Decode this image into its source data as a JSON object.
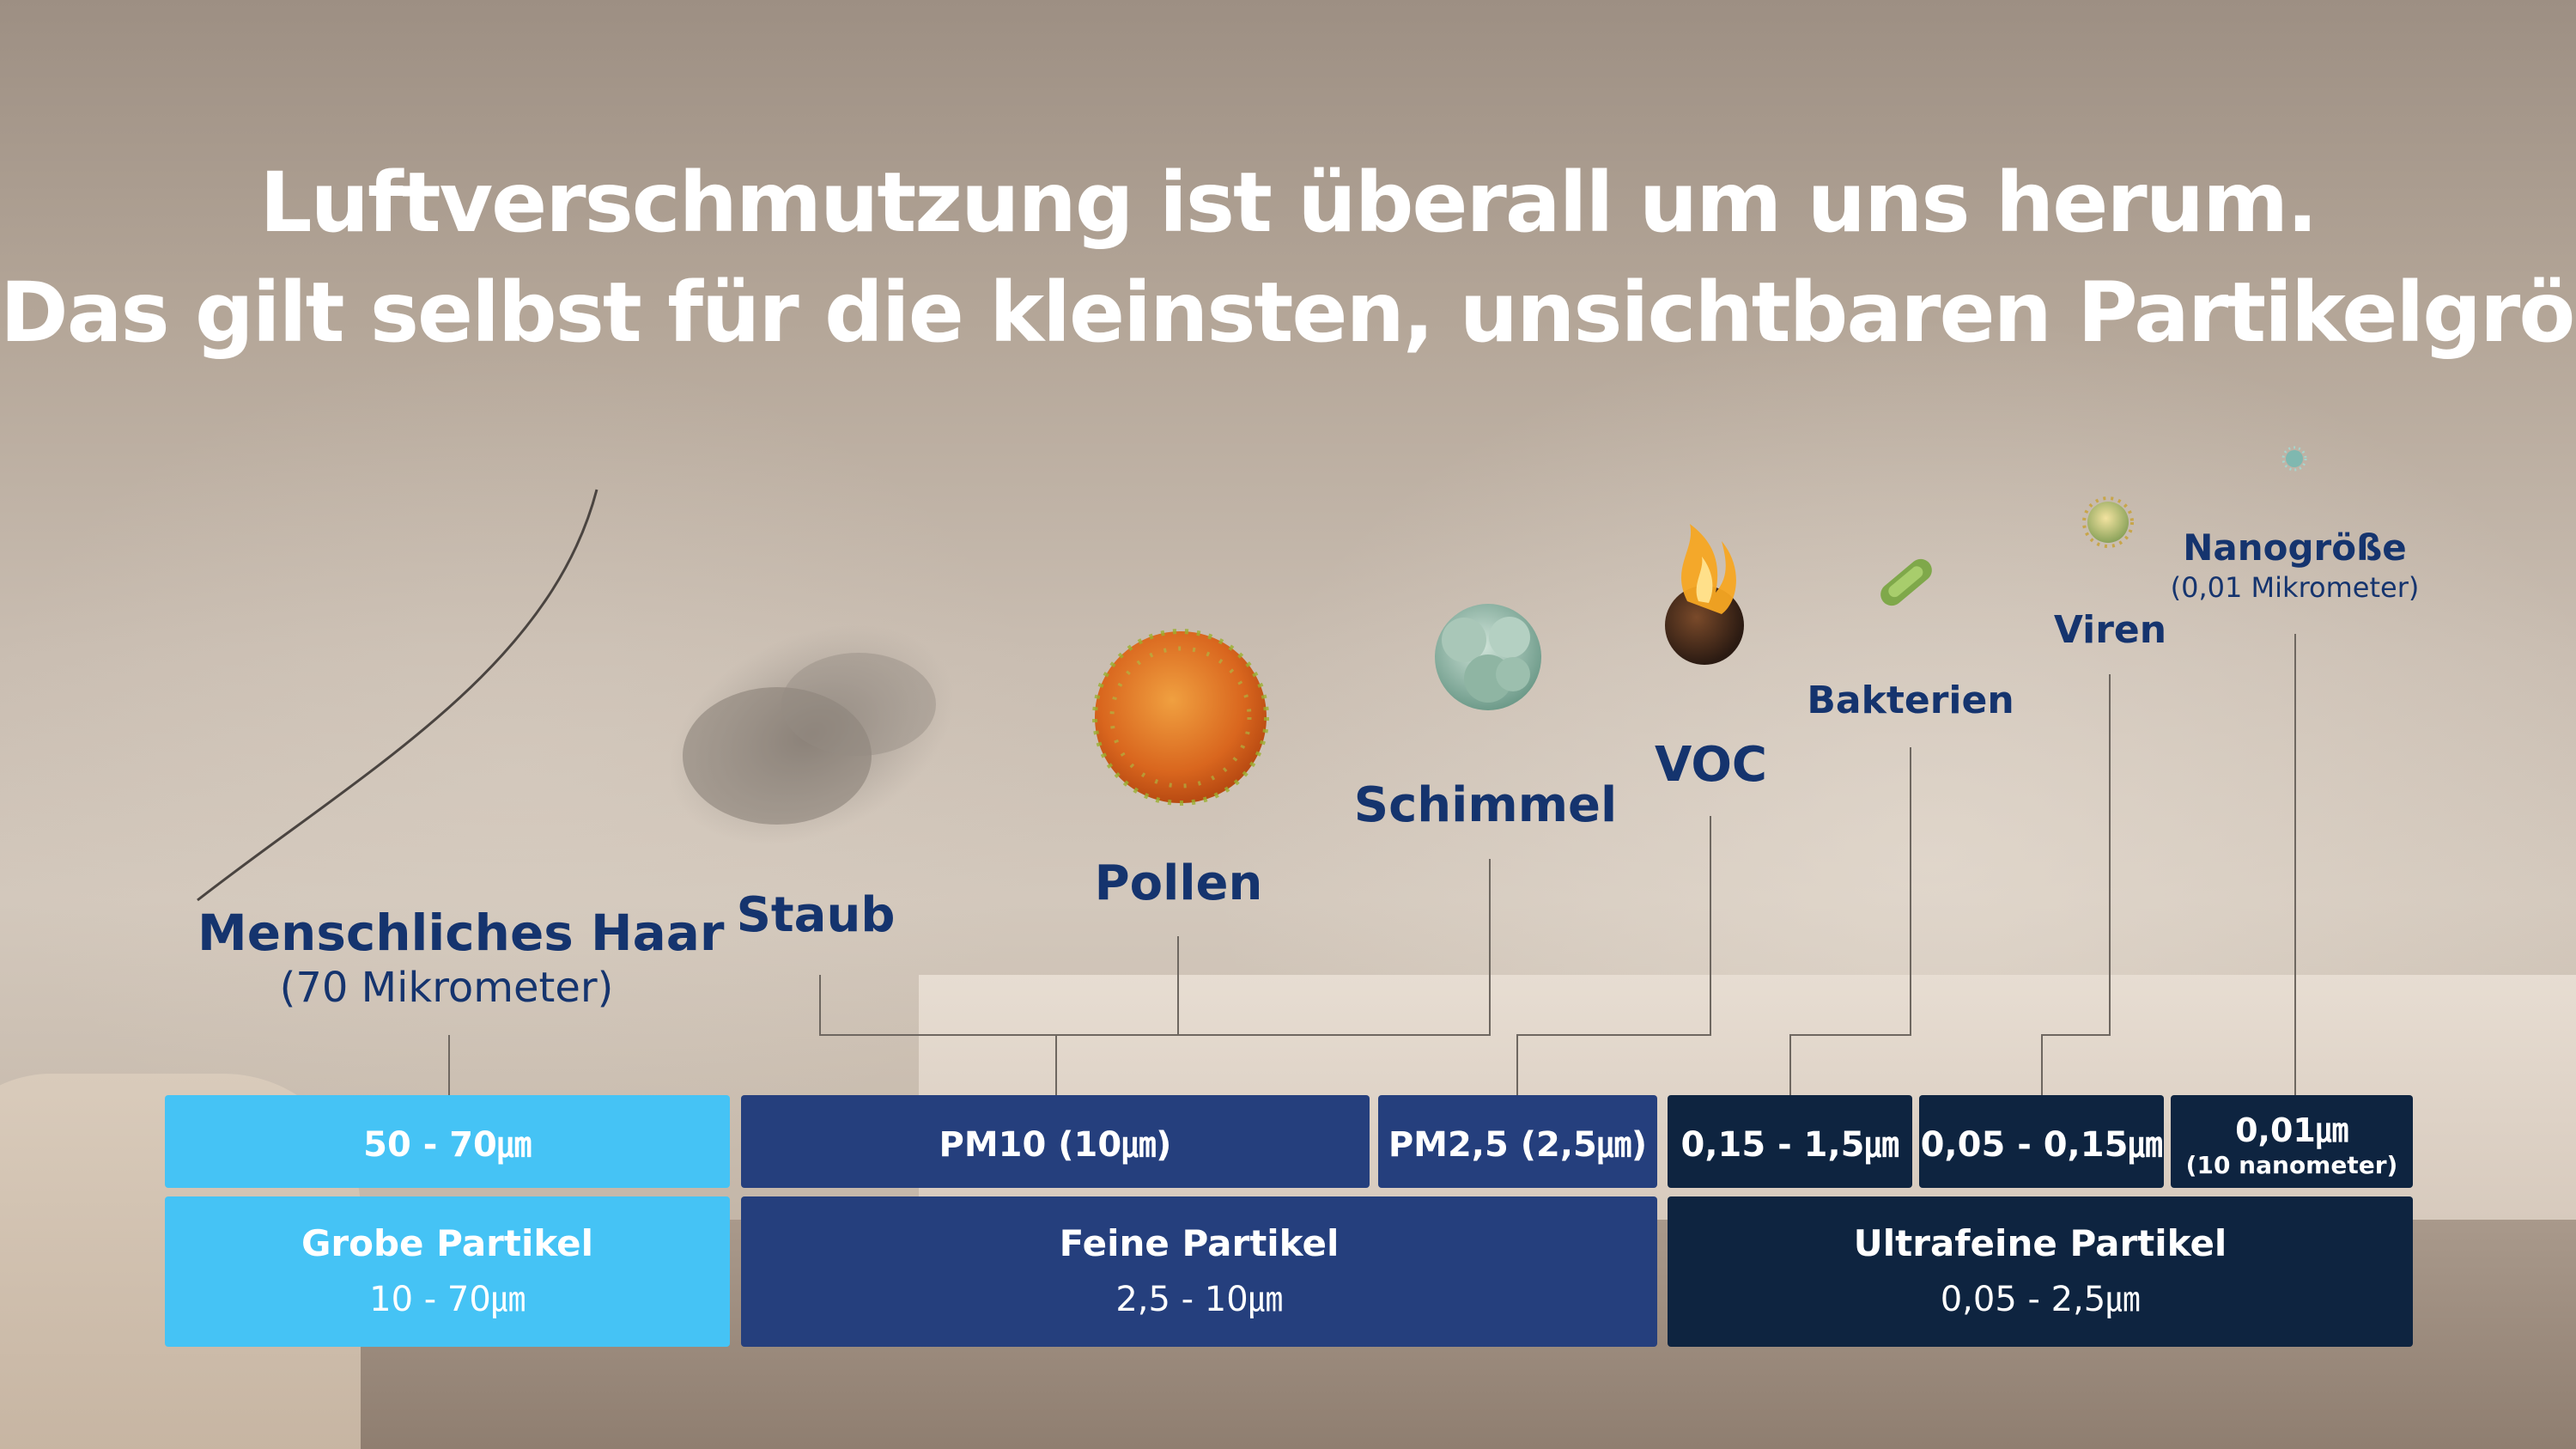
{
  "title": {
    "line1": "Luftverschmutzung ist überall um uns herum.",
    "line2": "Das gilt selbst für die kleinsten, unsichtbaren Partikelgrößen"
  },
  "particles": {
    "hair": {
      "name": "Menschliches Haar",
      "size": "(70 Mikrometer)"
    },
    "dust": {
      "name": "Staub"
    },
    "pollen": {
      "name": "Pollen"
    },
    "mold": {
      "name": "Schimmel"
    },
    "voc": {
      "name": "VOC"
    },
    "bacteria": {
      "name": "Bakterien"
    },
    "viruses": {
      "name": "Viren"
    },
    "nano": {
      "name": "Nanogröße",
      "size": "(0,01 Mikrometer)"
    }
  },
  "size_row": {
    "coarse": "50 - 70㎛",
    "pm10": "PM10 (10㎛)",
    "pm25": "PM2,5 (2,5㎛)",
    "range1": "0,15 - 1,5㎛",
    "range2": "0,05 - 0,15㎛",
    "nano": "0,01㎛",
    "nano_sub": "(10 nanometer)"
  },
  "category_row": {
    "coarse": {
      "name": "Grobe Partikel",
      "range": "10 - 70㎛"
    },
    "fine": {
      "name": "Feine Partikel",
      "range": "2,5 - 10㎛"
    },
    "ultrafine": {
      "name": "Ultrafeine Partikel",
      "range": "0,05 - 2,5㎛"
    }
  },
  "colors": {
    "coarse": "#45c3f5",
    "fine": "#253f7d",
    "ultrafine": "#0e2440",
    "label_text": "#15346e"
  },
  "icons": [
    "hair-strand-icon",
    "dust-cloud-icon",
    "pollen-icon",
    "mold-icon",
    "voc-fire-icon",
    "bacteria-icon",
    "virus-icon",
    "nanoparticle-icon"
  ]
}
